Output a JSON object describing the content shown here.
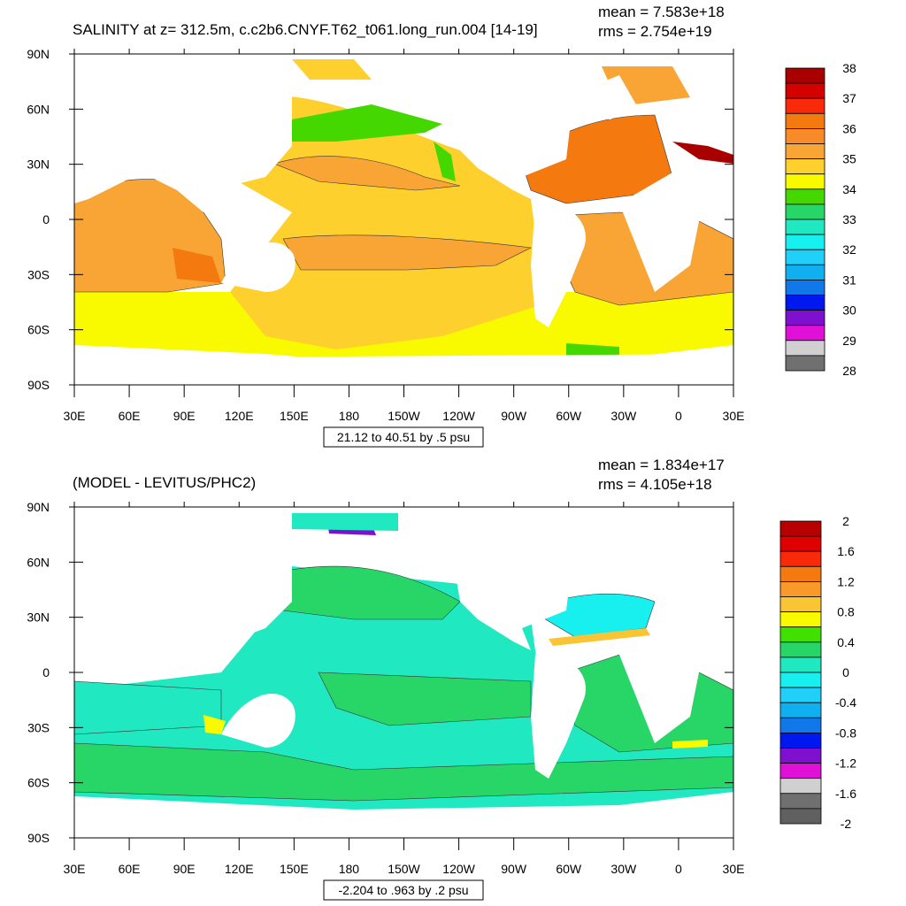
{
  "top_panel": {
    "title": "SALINITY at z= 312.5m, c.c2b6.CNYF.T62_t061.long_run.004 [14-19]",
    "mean_text": "mean = 7.583e+18",
    "rms_text": "rms = 2.754e+19",
    "contour_info": "21.12 to 40.51 by .5 psu",
    "colorbar_labels": [
      "38",
      "37",
      "36",
      "35",
      "34",
      "33",
      "32",
      "31",
      "30",
      "29",
      "28"
    ],
    "colorbar_colors": [
      "#a80000",
      "#d40000",
      "#f82a0a",
      "#f47a10",
      "#f88a2a",
      "#f9a535",
      "#fdd02e",
      "#f9f900",
      "#44d800",
      "#28d668",
      "#20e8c0",
      "#18f0f0",
      "#20d0f8",
      "#10b0f0",
      "#1078e8",
      "#0018f0",
      "#8010d0",
      "#e010d8",
      "#d0d0d0",
      "#707070"
    ]
  },
  "bottom_panel": {
    "title": "(MODEL - LEVITUS/PHC2)",
    "mean_text": "mean = 1.834e+17",
    "rms_text": "rms = 4.105e+18",
    "contour_info": "-2.204 to .963 by .2 psu",
    "colorbar_labels": [
      "2",
      "1.6",
      "1.2",
      "0.8",
      "0.4",
      "0",
      "-0.4",
      "-0.8",
      "-1.2",
      "-1.6",
      "-2"
    ],
    "colorbar_colors": [
      "#b80000",
      "#e00000",
      "#f82a0a",
      "#f47a10",
      "#f89a2a",
      "#f9c535",
      "#f9f900",
      "#40e000",
      "#28d668",
      "#20e8c0",
      "#18f0f0",
      "#20d0f8",
      "#10b0f0",
      "#1078e8",
      "#0018f0",
      "#8010d0",
      "#e010d8",
      "#d0d0d0",
      "#707070",
      "#606060"
    ]
  },
  "axes": {
    "lat_labels": [
      "90N",
      "60N",
      "30N",
      "0",
      "30S",
      "60S",
      "90S"
    ],
    "lon_labels": [
      "30E",
      "60E",
      "90E",
      "120E",
      "150E",
      "180",
      "150W",
      "120W",
      "90W",
      "60W",
      "30W",
      "0",
      "30E"
    ]
  },
  "colors": {
    "land": "#ffffff",
    "top_ocean_base": "#fdd02e",
    "top_pacific_south": "#f9f900",
    "top_atlantic": "#f47a10",
    "top_indian": "#f9a535",
    "top_green": "#44d800",
    "bottom_ocean_base": "#20e8c0",
    "bottom_green": "#28d668"
  }
}
